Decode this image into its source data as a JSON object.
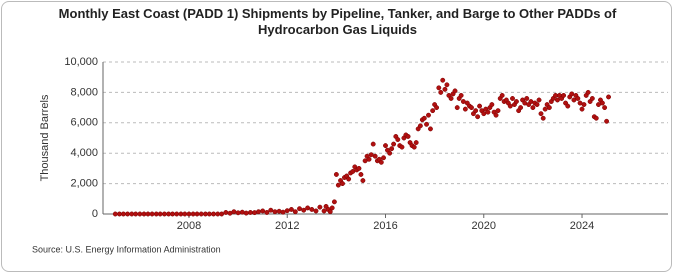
{
  "chart_data": {
    "type": "scatter",
    "title": "Monthly East Coast (PADD 1) Shipments by Pipeline, Tanker, and Barge to Other PADDs of Hydrocarbon Gas Liquids",
    "y_label": "Thousand Barrels",
    "source": "Source: U.S. Energy Information Administration",
    "xlim": [
      2004.5,
      2027.5
    ],
    "xticks": [
      2008,
      2012,
      2016,
      2020,
      2024
    ],
    "ylim": [
      0,
      10000
    ],
    "yticks": [
      0,
      {
        "value": 2000,
        "label": "2,000"
      },
      {
        "value": 4000,
        "label": "4,000"
      },
      {
        "value": 6000,
        "label": "6,000"
      },
      {
        "value": 8000,
        "label": "8,000"
      },
      {
        "value": 10000,
        "label": "10,000"
      }
    ],
    "grid": true,
    "color": "#b01010",
    "x": [
      2005.0,
      2005.17,
      2005.33,
      2005.5,
      2005.67,
      2005.83,
      2006.0,
      2006.17,
      2006.33,
      2006.5,
      2006.67,
      2006.83,
      2007.0,
      2007.17,
      2007.33,
      2007.5,
      2007.67,
      2007.83,
      2008.0,
      2008.17,
      2008.33,
      2008.5,
      2008.67,
      2008.83,
      2009.0,
      2009.17,
      2009.33,
      2009.5,
      2009.67,
      2009.83,
      2010.0,
      2010.17,
      2010.33,
      2010.5,
      2010.67,
      2010.83,
      2011.0,
      2011.17,
      2011.33,
      2011.5,
      2011.67,
      2011.83,
      2012.0,
      2012.17,
      2012.33,
      2012.5,
      2012.67,
      2012.83,
      2013.0,
      2013.17,
      2013.33,
      2013.5,
      2013.58,
      2013.67,
      2013.75,
      2013.83,
      2013.92,
      2014.0,
      2014.08,
      2014.17,
      2014.25,
      2014.33,
      2014.42,
      2014.5,
      2014.58,
      2014.67,
      2014.75,
      2014.83,
      2014.92,
      2015.0,
      2015.08,
      2015.17,
      2015.25,
      2015.33,
      2015.42,
      2015.5,
      2015.58,
      2015.67,
      2015.75,
      2015.83,
      2015.92,
      2016.0,
      2016.08,
      2016.17,
      2016.25,
      2016.33,
      2016.42,
      2016.5,
      2016.58,
      2016.67,
      2016.75,
      2016.83,
      2016.92,
      2017.0,
      2017.08,
      2017.17,
      2017.25,
      2017.33,
      2017.42,
      2017.5,
      2017.58,
      2017.67,
      2017.75,
      2017.83,
      2017.92,
      2018.0,
      2018.08,
      2018.17,
      2018.25,
      2018.33,
      2018.42,
      2018.5,
      2018.58,
      2018.67,
      2018.75,
      2018.83,
      2018.92,
      2019.0,
      2019.08,
      2019.17,
      2019.25,
      2019.33,
      2019.42,
      2019.5,
      2019.58,
      2019.67,
      2019.75,
      2019.83,
      2019.92,
      2020.0,
      2020.08,
      2020.17,
      2020.25,
      2020.33,
      2020.42,
      2020.5,
      2020.58,
      2020.67,
      2020.75,
      2020.83,
      2020.92,
      2021.0,
      2021.08,
      2021.17,
      2021.25,
      2021.33,
      2021.42,
      2021.5,
      2021.58,
      2021.67,
      2021.75,
      2021.83,
      2021.92,
      2022.0,
      2022.08,
      2022.17,
      2022.25,
      2022.33,
      2022.42,
      2022.5,
      2022.58,
      2022.67,
      2022.75,
      2022.83,
      2022.92,
      2023.0,
      2023.08,
      2023.17,
      2023.25,
      2023.33,
      2023.42,
      2023.5,
      2023.58,
      2023.67,
      2023.75,
      2023.83,
      2023.92,
      2024.0,
      2024.08,
      2024.17,
      2024.25,
      2024.33,
      2024.42,
      2024.5,
      2024.58,
      2024.67,
      2024.75,
      2024.83,
      2024.92,
      2025.0,
      2025.08
    ],
    "values": [
      0,
      0,
      0,
      0,
      0,
      0,
      0,
      0,
      0,
      0,
      0,
      0,
      0,
      0,
      0,
      0,
      0,
      0,
      0,
      0,
      0,
      0,
      0,
      0,
      0,
      0,
      0,
      100,
      50,
      150,
      80,
      120,
      60,
      100,
      90,
      150,
      200,
      100,
      250,
      150,
      180,
      120,
      220,
      300,
      150,
      350,
      250,
      400,
      300,
      200,
      450,
      200,
      500,
      300,
      150,
      400,
      800,
      2600,
      1900,
      2200,
      2000,
      2400,
      2500,
      2300,
      2700,
      2800,
      3100,
      2900,
      3000,
      2600,
      2200,
      3500,
      3800,
      3600,
      3900,
      4600,
      3800,
      3500,
      3600,
      3400,
      3700,
      4500,
      4200,
      4000,
      4300,
      4600,
      5100,
      4900,
      4500,
      4400,
      5000,
      5200,
      5100,
      4700,
      4500,
      4400,
      4700,
      5600,
      5800,
      6200,
      6300,
      5900,
      6500,
      5600,
      6800,
      7200,
      7000,
      8300,
      8000,
      8800,
      8200,
      8500,
      7800,
      7600,
      7900,
      8100,
      7000,
      7600,
      7800,
      7400,
      6900,
      7300,
      7100,
      7000,
      6600,
      6800,
      6400,
      7100,
      6800,
      6600,
      6900,
      6700,
      7000,
      7200,
      6700,
      6500,
      6800,
      7600,
      7800,
      7400,
      7500,
      7300,
      7100,
      7600,
      7200,
      7400,
      6800,
      7000,
      7500,
      7300,
      7600,
      7200,
      7400,
      7000,
      7300,
      7200,
      7500,
      6600,
      6300,
      6900,
      7200,
      7000,
      7400,
      7600,
      7800,
      7500,
      7800,
      7600,
      7800,
      7300,
      7100,
      7700,
      7900,
      7500,
      7800,
      7600,
      7300,
      6900,
      7200,
      7800,
      8000,
      7400,
      7600,
      6400,
      6300,
      7200,
      7500,
      7300,
      7000,
      6100,
      7700
    ]
  }
}
